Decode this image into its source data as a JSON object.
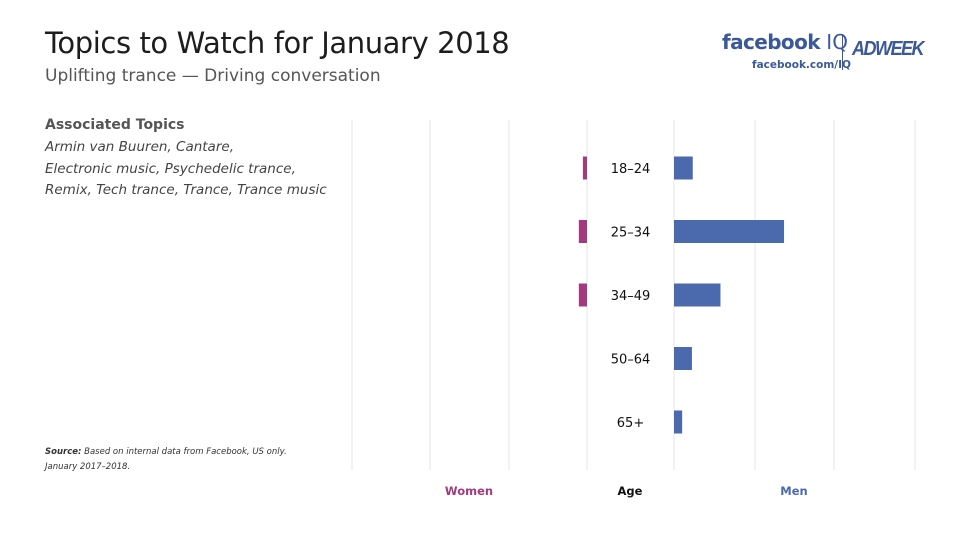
{
  "header": {
    "title": "Topics to Watch for January 2018",
    "subtitle": "Uplifting trance — Driving conversation"
  },
  "brand": {
    "facebook": "facebook",
    "iq": "IQ",
    "url": "facebook.com/IQ",
    "adweek": "ADWEEK"
  },
  "topics": {
    "heading": "Associated Topics",
    "lines": [
      "Armin van Buuren, Cantare,",
      "Electronic music, Psychedelic trance,",
      "Remix, Tech trance, Trance, Trance music"
    ]
  },
  "source": {
    "label": "Source:",
    "text": "Based on internal data from Facebook, US only.",
    "period": "January 2017–2018."
  },
  "colors": {
    "women": "#a23b7e",
    "men": "#4a6aad",
    "grid": "#e6e6e6"
  },
  "chart_data": {
    "type": "bar",
    "orientation": "horizontal-butterfly",
    "categories": [
      "18–24",
      "25–34",
      "34–49",
      "50–64",
      "65+"
    ],
    "series": [
      {
        "name": "Women",
        "values": [
          0.5,
          1,
          1,
          0,
          0
        ]
      },
      {
        "name": "Men",
        "values": [
          2.3,
          13.5,
          5.7,
          2.2,
          1
        ]
      }
    ],
    "category_axis_label": "Age",
    "grid": true,
    "scale_note": "relative share, no numeric tick labels shown"
  }
}
